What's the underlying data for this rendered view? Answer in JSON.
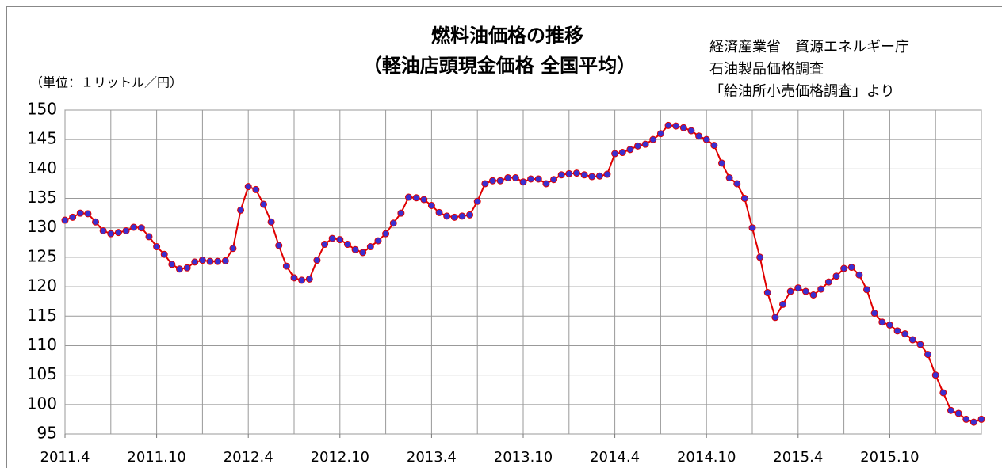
{
  "chart_data": {
    "type": "line",
    "title": "燃料油価格の推移",
    "subtitle": "（軽油店頭現金価格 全国平均）",
    "y_axis_label": "（単位：１リットル／円）",
    "source": [
      "経済産業省　資源エネルギー庁",
      "石油製品価格調査",
      "「給油所小売価格調査」より"
    ],
    "x": [
      0,
      0.5,
      1,
      1.5,
      2,
      2.5,
      3,
      3.5,
      4,
      4.5,
      5,
      5.5,
      6,
      6.5,
      7,
      7.5,
      8,
      8.5,
      9,
      9.5,
      10,
      10.5,
      11,
      11.5,
      12,
      12.5,
      13,
      13.5,
      14,
      14.5,
      15,
      15.5,
      16,
      16.5,
      17,
      17.5,
      18,
      18.5,
      19,
      19.5,
      20,
      20.5,
      21,
      21.5,
      22,
      22.5,
      23,
      23.5,
      24,
      24.5,
      25,
      25.5,
      26,
      26.5,
      27,
      27.5,
      28,
      28.5,
      29,
      29.5,
      30,
      30.5,
      31,
      31.5,
      32,
      32.5,
      33,
      33.5,
      34,
      34.5,
      35,
      35.5,
      36,
      36.5,
      37,
      37.5,
      38,
      38.5,
      39,
      39.5,
      40,
      40.5,
      41,
      41.5,
      42,
      42.5,
      43,
      43.5,
      44,
      44.5,
      45,
      45.5,
      46,
      46.5,
      47,
      47.5,
      48,
      48.5,
      49,
      49.5,
      50,
      50.5,
      51,
      51.5,
      52,
      52.5,
      53,
      53.5,
      54,
      54.5,
      55,
      55.5,
      56,
      56.5,
      57,
      57.5,
      58,
      58.5,
      59,
      59.5,
      60
    ],
    "series": [
      {
        "color": "#e00000",
        "marker_color": "#3a2fd0",
        "values": [
          131.3,
          131.8,
          132.5,
          132.4,
          131,
          129.5,
          129,
          129.2,
          129.5,
          130.1,
          130,
          128.5,
          126.8,
          125.5,
          123.8,
          123,
          123.2,
          124.2,
          124.5,
          124.3,
          124.3,
          124.4,
          126.5,
          133,
          137,
          136.5,
          134,
          131,
          127,
          123.5,
          121.5,
          121.1,
          121.3,
          124.5,
          127.2,
          128.2,
          128,
          127.2,
          126.3,
          125.8,
          126.8,
          127.8,
          129,
          130.8,
          132.5,
          135.2,
          135.1,
          134.8,
          133.8,
          132.6,
          132,
          131.8,
          132,
          132.2,
          134.5,
          137.5,
          138,
          138,
          138.5,
          138.5,
          137.8,
          138.3,
          138.3,
          137.5,
          138.2,
          139,
          139.2,
          139.3,
          139,
          138.7,
          138.8,
          139.1,
          142.6,
          142.8,
          143.3,
          143.9,
          144.2,
          145,
          146,
          147.4,
          147.3,
          147,
          146.5,
          145.6,
          145,
          144,
          141,
          138.5,
          137.5,
          135,
          130,
          125,
          119,
          114.8,
          117,
          119.2,
          119.8,
          119.2,
          118.6,
          119.6,
          120.8,
          121.8,
          123.1,
          123.3,
          122,
          119.5,
          115.5,
          114,
          113.5,
          112.5,
          112,
          111,
          110.2,
          108.5,
          105,
          102,
          99,
          98.5,
          97.5,
          97,
          97.5
        ]
      }
    ],
    "xlim": [
      0,
      60
    ],
    "xticks": [
      {
        "value": 0,
        "label": "2011.4"
      },
      {
        "value": 6,
        "label": "2011.10"
      },
      {
        "value": 12,
        "label": "2012.4"
      },
      {
        "value": 18,
        "label": "2012.10"
      },
      {
        "value": 24,
        "label": "2013.4"
      },
      {
        "value": 30,
        "label": "2013.10"
      },
      {
        "value": 36,
        "label": "2014.4"
      },
      {
        "value": 42,
        "label": "2014.10"
      },
      {
        "value": 48,
        "label": "2015.4"
      },
      {
        "value": 54,
        "label": "2015.10"
      }
    ],
    "xgrid": [
      0,
      3,
      6,
      9,
      12,
      15,
      18,
      21,
      24,
      27,
      30,
      33,
      36,
      39,
      42,
      45,
      48,
      51,
      54,
      57,
      60
    ],
    "ylim": [
      95,
      150
    ],
    "yticks": [
      95,
      100,
      105,
      110,
      115,
      120,
      125,
      130,
      135,
      140,
      145,
      150
    ],
    "grid": true
  }
}
